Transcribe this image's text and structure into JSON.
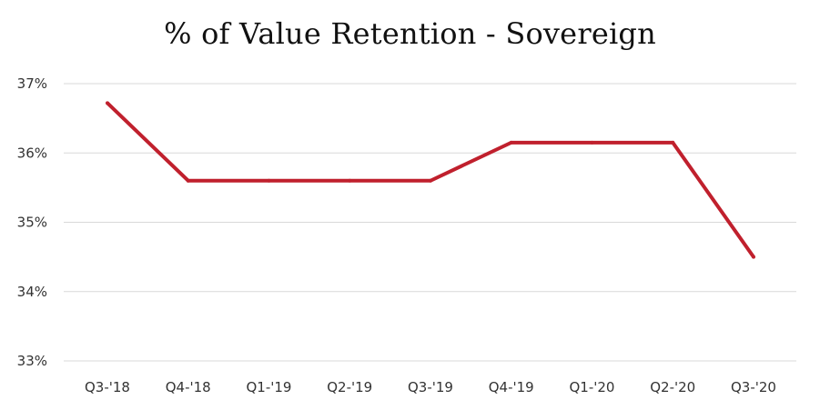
{
  "chart_data": {
    "type": "line",
    "title": "% of Value Retention - Sovereign",
    "xlabel": "",
    "ylabel": "",
    "categories": [
      "Q3-'18",
      "Q4-'18",
      "Q1-'19",
      "Q2-'19",
      "Q3-'19",
      "Q4-'19",
      "Q1-'20",
      "Q2-'20",
      "Q3-'20"
    ],
    "series": [
      {
        "values": [
          36.72,
          35.6,
          35.6,
          35.6,
          35.6,
          36.15,
          36.15,
          36.15,
          34.5
        ]
      }
    ],
    "ylim": [
      33,
      37
    ],
    "yticks": [
      33,
      34,
      35,
      36,
      37
    ],
    "ytick_labels": [
      "33%",
      "34%",
      "35%",
      "36%",
      "37%"
    ],
    "grid": true,
    "legend": "none",
    "colors": {
      "series": "#c0202d",
      "grid": "#d9d9d9"
    }
  }
}
